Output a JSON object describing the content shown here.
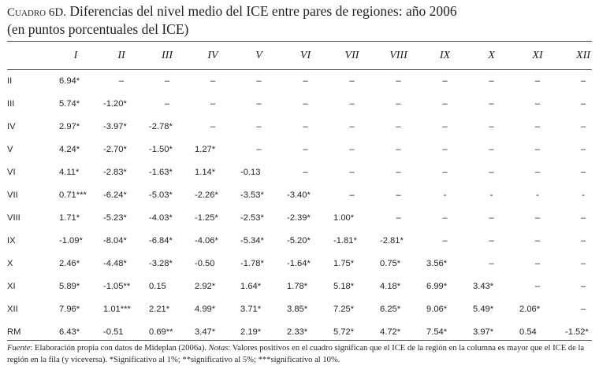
{
  "title": {
    "number": "Cuadro 6D.",
    "line1_before": "Diferencias del nivel medio del",
    "acronym1": "ICE",
    "line1_after": "entre pares de regiones: año 2006",
    "line2_before": "(en puntos porcentuales del",
    "acronym2": "ICE",
    "line2_after": ")"
  },
  "columns": [
    "I",
    "II",
    "III",
    "IV",
    "V",
    "VI",
    "VII",
    "VIII",
    "IX",
    "X",
    "XI",
    "XII"
  ],
  "rows": [
    {
      "label": "II",
      "values": [
        "6.94*",
        "–",
        "–",
        "–",
        "–",
        "–",
        "–",
        "–",
        "–",
        "–",
        "–",
        "–"
      ]
    },
    {
      "label": "III",
      "values": [
        "5.74*",
        "-1.20*",
        "–",
        "–",
        "–",
        "–",
        "–",
        "–",
        "–",
        "–",
        "–",
        "–"
      ]
    },
    {
      "label": "IV",
      "values": [
        "2.97*",
        "-3.97*",
        "-2.78*",
        "–",
        "–",
        "–",
        "–",
        "–",
        "–",
        "–",
        "–",
        "–"
      ]
    },
    {
      "label": "V",
      "values": [
        "4.24*",
        "-2.70*",
        "-1.50*",
        "1.27*",
        "–",
        "–",
        "–",
        "–",
        "–",
        "–",
        "–",
        "–"
      ]
    },
    {
      "label": "VI",
      "values": [
        "4.11*",
        "-2.83*",
        "-1.63*",
        "1.14*",
        "-0.13",
        "–",
        "–",
        "–",
        "–",
        "–",
        "–",
        "–"
      ]
    },
    {
      "label": "VII",
      "values": [
        "0.71***",
        "-6.24*",
        "-5.03*",
        "-2.26*",
        "-3.53*",
        "-3.40*",
        "–",
        "–",
        "-",
        "-",
        "-",
        "-"
      ]
    },
    {
      "label": "VIII",
      "values": [
        "1.71*",
        "-5.23*",
        "-4.03*",
        "-1.25*",
        "-2.53*",
        "-2.39*",
        "1.00*",
        "–",
        "–",
        "–",
        "–",
        "–"
      ]
    },
    {
      "label": "IX",
      "values": [
        "-1.09*",
        "-8.04*",
        "-6.84*",
        "-4.06*",
        "-5.34*",
        "-5.20*",
        "-1.81*",
        "-2.81*",
        "–",
        "–",
        "–",
        "–"
      ]
    },
    {
      "label": "X",
      "values": [
        "2.46*",
        "-4.48*",
        "-3.28*",
        "-0.50",
        "-1.78*",
        "-1.64*",
        "1.75*",
        "0.75*",
        "3.56*",
        "–",
        "–",
        "–"
      ]
    },
    {
      "label": "XI",
      "values": [
        "5.89*",
        "-1.05**",
        "0.15",
        "2.92*",
        "1.64*",
        "1.78*",
        "5.18*",
        "4.18*",
        "6.99*",
        "3.43*",
        "–",
        "–"
      ]
    },
    {
      "label": "XII",
      "values": [
        "7.96*",
        "1.01***",
        "2.21*",
        "4.99*",
        "3.71*",
        "3.85*",
        "7.25*",
        "6.25*",
        "9.06*",
        "5.49*",
        "2.06*",
        "–"
      ]
    },
    {
      "label": "RM",
      "values": [
        "6.43*",
        "-0.51",
        "0.69**",
        "3.47*",
        "2.19*",
        "2.33*",
        "5.72*",
        "4.72*",
        "7.54*",
        "3.97*",
        "0.54",
        "-1.52*"
      ]
    }
  ],
  "footnote": {
    "source_label": "Fuente",
    "source_text": ": Elaboración propia con datos de Mideplan (2006a).",
    "notes_label": "Notas",
    "notes_text_1": ": Valores positivos en el cuadro significan que el",
    "acronym1": "ICE",
    "notes_text_2": "de la región en la columna es mayor que el",
    "acronym2": "ICE",
    "notes_text_3": "de la región en la fila (y viceversa). *Significativo al 1%; **significativo al 5%; ***significativo al 10%."
  }
}
